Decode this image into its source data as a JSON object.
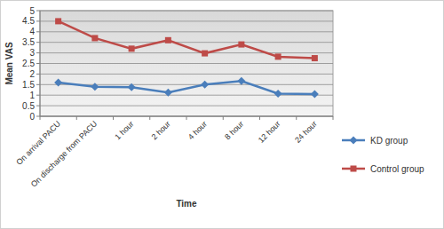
{
  "chart_data": {
    "type": "line",
    "x_label": "Time",
    "y_label": "Mean VAS",
    "categories": [
      "On arrival PACU",
      "On discharge from PACU",
      "1 hour",
      "2 hour",
      "4 hour",
      "8 hour",
      "12 hour",
      "24 hour"
    ],
    "series": [
      {
        "name": "KD group",
        "color": "#4a7ebb",
        "marker": "diamond",
        "values": [
          1.6,
          1.4,
          1.38,
          1.12,
          1.5,
          1.67,
          1.07,
          1.05
        ]
      },
      {
        "name": "Control group",
        "color": "#be4b48",
        "marker": "square",
        "values": [
          4.5,
          3.7,
          3.2,
          3.6,
          2.98,
          3.4,
          2.82,
          2.75
        ]
      }
    ],
    "ylim": [
      0,
      5
    ],
    "yticks": [
      0,
      0.5,
      1,
      1.5,
      2,
      2.5,
      3,
      3.5,
      4,
      4.5,
      5
    ],
    "grid": true,
    "legend": "right"
  }
}
